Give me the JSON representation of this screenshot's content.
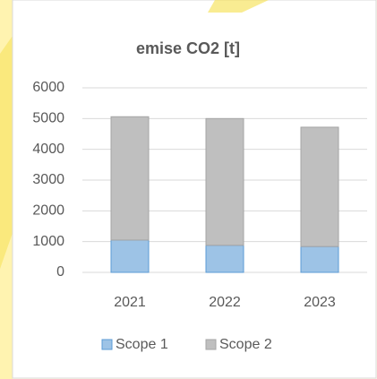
{
  "chart_data": {
    "type": "stacked-bar",
    "title": "emise CO2 [t]",
    "categories": [
      "2021",
      "2022",
      "2023"
    ],
    "series": [
      {
        "name": "Scope 1",
        "color": "#9dc3e6",
        "values": [
          1050,
          880,
          840
        ]
      },
      {
        "name": "Scope 2",
        "color": "#bfbfbf",
        "values": [
          4010,
          4120,
          3880
        ]
      }
    ],
    "ylim": [
      0,
      6000
    ],
    "yticks": [
      0,
      1000,
      2000,
      3000,
      4000,
      5000,
      6000
    ],
    "grid": true,
    "legend": "bottom"
  }
}
